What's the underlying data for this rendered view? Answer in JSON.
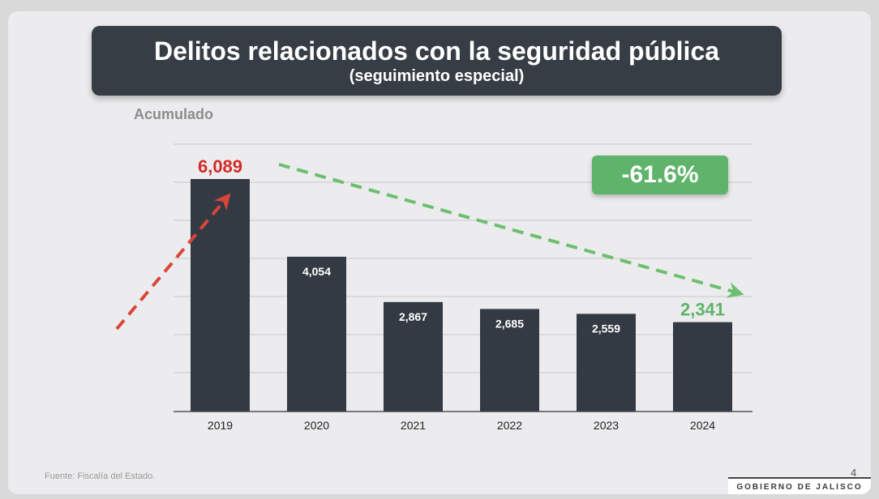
{
  "slide": {
    "title": "Delitos relacionados con la seguridad pública",
    "subtitle": "(seguimiento especial)",
    "acumulado_label": "Acumulado",
    "change_badge": "-61.6%",
    "source": "Fuente: Fiscalía del Estado.",
    "page_number": "4",
    "footer_logo": "GOBIERNO DE JALISCO"
  },
  "colors": {
    "bar": "#333a43",
    "up_arrow": "#d9453a",
    "down_arrow": "#6cbf6e",
    "badge": "#5fb36b",
    "title_bar": "#363d45",
    "highlight_first": "#d42b25",
    "highlight_last": "#5fb36b"
  },
  "chart_data": {
    "type": "bar",
    "categories": [
      "2019",
      "2020",
      "2021",
      "2022",
      "2023",
      "2024"
    ],
    "values": [
      6089,
      4054,
      2867,
      2685,
      2559,
      2341
    ],
    "value_labels": [
      "6,089",
      "4,054",
      "2,867",
      "2,685",
      "2,559",
      "2,341"
    ],
    "title": "Delitos relacionados con la seguridad pública",
    "subtitle": "(seguimiento especial)",
    "ylabel": "Acumulado",
    "ylim": [
      0,
      7000
    ],
    "grid": true,
    "annotation": "-61.6%"
  }
}
